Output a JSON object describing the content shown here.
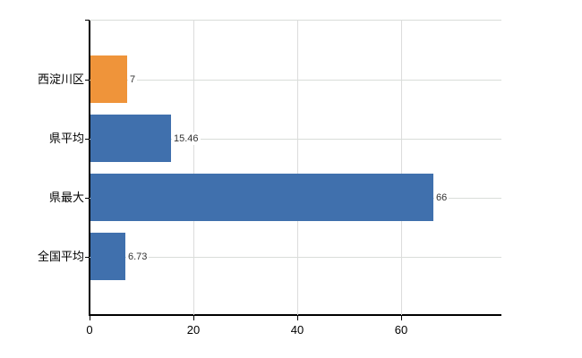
{
  "chart": {
    "background_color": "#ffffff",
    "axis_color": "#000000",
    "grid_color": "#dcdcdc",
    "value_label_color": "#333333",
    "category_label_color": "#000000"
  },
  "chart_data": {
    "type": "bar",
    "orientation": "horizontal",
    "title": "",
    "xlabel": "",
    "ylabel": "",
    "categories": [
      "西淀川区",
      "県平均",
      "県最大",
      "全国平均"
    ],
    "values": [
      7,
      15.46,
      66,
      6.73
    ],
    "value_labels": [
      "7",
      "15.46",
      "66",
      "6.73"
    ],
    "bar_colors": [
      "#EF943A",
      "#4070AD",
      "#4070AD",
      "#4070AD"
    ],
    "x_ticks": [
      0,
      20,
      40,
      60
    ],
    "x_tick_labels": [
      "0",
      "20",
      "40",
      "60"
    ],
    "xlim": [
      0,
      79.3
    ],
    "grid": "on",
    "legend": "none"
  }
}
